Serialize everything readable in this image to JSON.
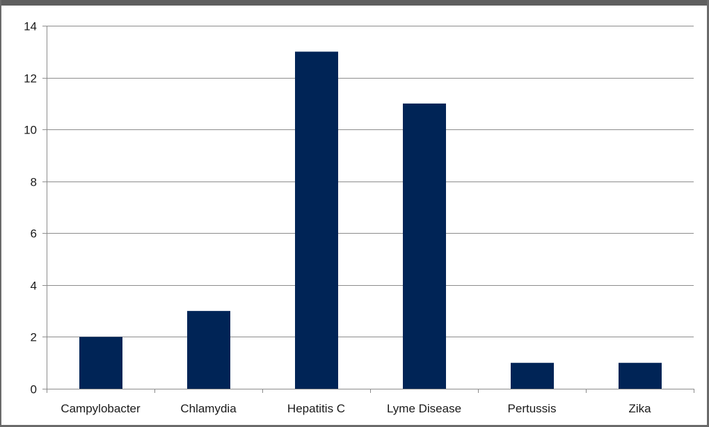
{
  "colors": {
    "bar": "#002456",
    "grid": "#8c8c8c",
    "axis": "#8c8c8c",
    "frame": "#5f5f5f"
  },
  "chart_data": {
    "type": "bar",
    "categories": [
      "Campylobacter",
      "Chlamydia",
      "Hepatitis C",
      "Lyme Disease",
      "Pertussis",
      "Zika"
    ],
    "values": [
      2,
      3,
      13,
      11,
      1,
      1
    ],
    "title": "",
    "xlabel": "",
    "ylabel": "",
    "ylim": [
      0,
      14
    ],
    "yticks": [
      0,
      2,
      4,
      6,
      8,
      10,
      12,
      14
    ],
    "grid": true,
    "legend": "none"
  }
}
